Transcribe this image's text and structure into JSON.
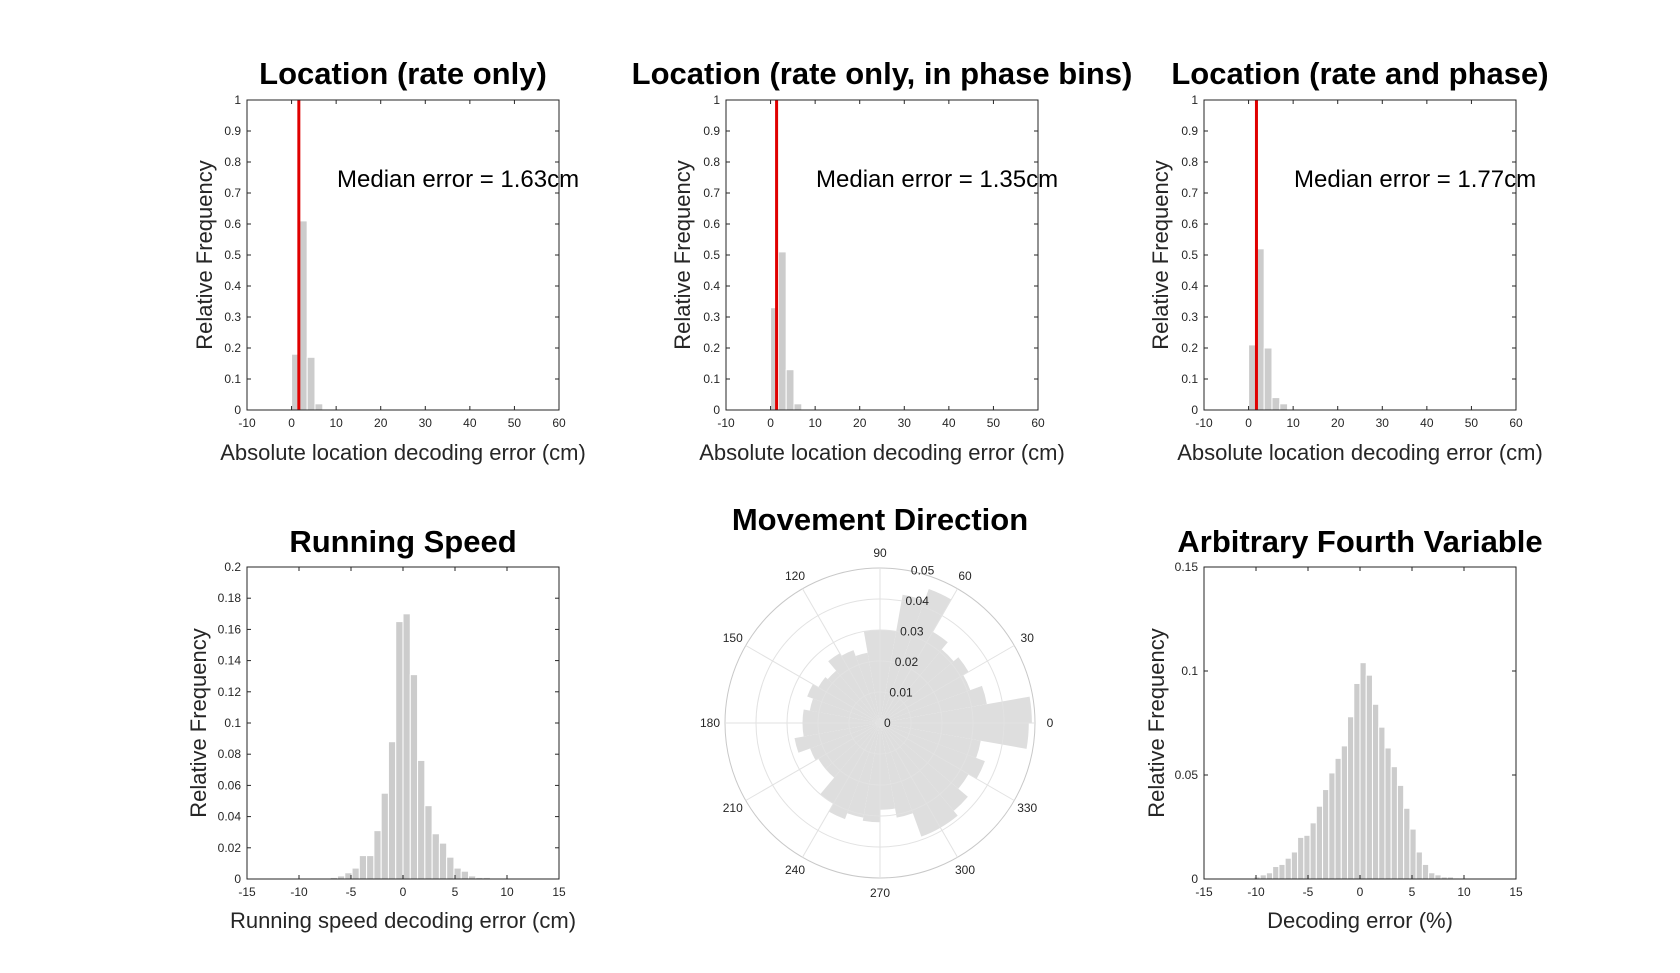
{
  "chart_data": [
    {
      "type": "bar",
      "title": "Location (rate only)",
      "xlabel": "Absolute location decoding error (cm)",
      "ylabel": "Relative Frequency",
      "xlim": [
        -10,
        60
      ],
      "ylim": [
        0,
        1
      ],
      "xticks": [
        "-10",
        "0",
        "10",
        "20",
        "30",
        "40",
        "50",
        "60"
      ],
      "yticks": [
        "0",
        "0.1",
        "0.2",
        "0.3",
        "0.4",
        "0.5",
        "0.6",
        "0.7",
        "0.8",
        "0.9",
        "1"
      ],
      "bin_width": 1.75,
      "bins": [
        0,
        1.75,
        3.5,
        5.25
      ],
      "values": [
        0.18,
        0.61,
        0.17,
        0.02
      ],
      "median": 1.63,
      "annotation": "Median error = 1.63cm",
      "bar_color": "#cccccc",
      "median_color": "#e00000"
    },
    {
      "type": "bar",
      "title": "Location (rate only, in phase bins)",
      "xlabel": "Absolute location decoding error (cm)",
      "ylabel": "Relative Frequency",
      "xlim": [
        -10,
        60
      ],
      "ylim": [
        0,
        1
      ],
      "xticks": [
        "-10",
        "0",
        "10",
        "20",
        "30",
        "40",
        "50",
        "60"
      ],
      "yticks": [
        "0",
        "0.1",
        "0.2",
        "0.3",
        "0.4",
        "0.5",
        "0.6",
        "0.7",
        "0.8",
        "0.9",
        "1"
      ],
      "bin_width": 1.75,
      "bins": [
        0,
        1.75,
        3.5,
        5.25
      ],
      "values": [
        0.33,
        0.51,
        0.13,
        0.02
      ],
      "median": 1.35,
      "annotation": "Median error = 1.35cm",
      "bar_color": "#cccccc",
      "median_color": "#e00000"
    },
    {
      "type": "bar",
      "title": "Location (rate and phase)",
      "xlabel": "Absolute location decoding error (cm)",
      "ylabel": "Relative Frequency",
      "xlim": [
        -10,
        60
      ],
      "ylim": [
        0,
        1
      ],
      "xticks": [
        "-10",
        "0",
        "10",
        "20",
        "30",
        "40",
        "50",
        "60"
      ],
      "yticks": [
        "0",
        "0.1",
        "0.2",
        "0.3",
        "0.4",
        "0.5",
        "0.6",
        "0.7",
        "0.8",
        "0.9",
        "1"
      ],
      "bin_width": 1.75,
      "bins": [
        0,
        1.75,
        3.5,
        5.25,
        7.0
      ],
      "values": [
        0.21,
        0.52,
        0.2,
        0.04,
        0.02
      ],
      "median": 1.77,
      "annotation": "Median error = 1.77cm",
      "bar_color": "#cccccc",
      "median_color": "#e00000"
    },
    {
      "type": "bar",
      "title": "Running Speed",
      "xlabel": "Running speed decoding error (cm)",
      "ylabel": "Relative Frequency",
      "xlim": [
        -15,
        15
      ],
      "ylim": [
        0,
        0.2
      ],
      "xticks": [
        "-15",
        "-10",
        "-5",
        "0",
        "5",
        "10",
        "15"
      ],
      "yticks": [
        "0",
        "0.02",
        "0.04",
        "0.06",
        "0.08",
        "0.1",
        "0.12",
        "0.14",
        "0.16",
        "0.18",
        "0.2"
      ],
      "bin_width": 0.7,
      "bins": [
        -7.0,
        -6.3,
        -5.6,
        -4.9,
        -4.2,
        -3.5,
        -2.8,
        -2.1,
        -1.4,
        -0.7,
        0.0,
        0.7,
        1.4,
        2.1,
        2.8,
        3.5,
        4.2,
        4.9,
        5.6,
        6.3,
        7.0,
        7.7
      ],
      "values": [
        0.001,
        0.002,
        0.004,
        0.007,
        0.015,
        0.015,
        0.031,
        0.055,
        0.088,
        0.165,
        0.17,
        0.131,
        0.076,
        0.047,
        0.029,
        0.023,
        0.014,
        0.007,
        0.005,
        0.002,
        0.001,
        0.001
      ],
      "bar_color": "#cccccc"
    },
    {
      "type": "polar_histogram",
      "title": "Movement Direction",
      "theta_ticks": [
        "0",
        "30",
        "60",
        "90",
        "120",
        "150",
        "180",
        "210",
        "240",
        "270",
        "300",
        "330"
      ],
      "r_ticks": [
        "0",
        "0.01",
        "0.02",
        "0.03",
        "0.04",
        "0.05"
      ],
      "rlim": [
        0,
        0.05
      ],
      "bin_width_deg": 10,
      "bins_start_deg": [
        0,
        10,
        20,
        30,
        40,
        50,
        60,
        70,
        80,
        90,
        100,
        110,
        120,
        130,
        140,
        150,
        160,
        170,
        180,
        190,
        200,
        210,
        220,
        230,
        240,
        250,
        260,
        270,
        280,
        290,
        300,
        310,
        320,
        330,
        340,
        350
      ],
      "values": [
        0.049,
        0.035,
        0.031,
        0.033,
        0.031,
        0.034,
        0.046,
        0.042,
        0.03,
        0.03,
        0.023,
        0.025,
        0.026,
        0.022,
        0.023,
        0.025,
        0.023,
        0.025,
        0.025,
        0.028,
        0.024,
        0.023,
        0.023,
        0.03,
        0.033,
        0.031,
        0.032,
        0.028,
        0.031,
        0.039,
        0.039,
        0.037,
        0.033,
        0.036,
        0.033,
        0.048
      ],
      "bar_color": "#dedede"
    },
    {
      "type": "bar",
      "title": "Arbitrary Fourth Variable",
      "xlabel": "Decoding error (%)",
      "ylabel": "Relative Frequency",
      "xlim": [
        -15,
        15
      ],
      "ylim": [
        0,
        0.15
      ],
      "xticks": [
        "-15",
        "-10",
        "-5",
        "0",
        "5",
        "10",
        "15"
      ],
      "yticks": [
        "0",
        "0.05",
        "0.1",
        "0.15"
      ],
      "bin_width": 0.6,
      "bins": [
        -10.2,
        -9.6,
        -9.0,
        -8.4,
        -7.8,
        -7.2,
        -6.6,
        -6.0,
        -5.4,
        -4.8,
        -4.2,
        -3.6,
        -3.0,
        -2.4,
        -1.8,
        -1.2,
        -0.6,
        0.0,
        0.6,
        1.2,
        1.8,
        2.4,
        3.0,
        3.6,
        4.2,
        4.8,
        5.4,
        6.0,
        6.6,
        7.2,
        7.8,
        8.4,
        9.0,
        9.6
      ],
      "values": [
        0.001,
        0.002,
        0.003,
        0.006,
        0.007,
        0.01,
        0.013,
        0.02,
        0.021,
        0.027,
        0.035,
        0.043,
        0.051,
        0.058,
        0.064,
        0.078,
        0.094,
        0.104,
        0.098,
        0.084,
        0.073,
        0.063,
        0.054,
        0.045,
        0.034,
        0.024,
        0.013,
        0.007,
        0.003,
        0.002,
        0.001,
        0.001,
        0.0005,
        0.0003
      ],
      "bar_color": "#cccccc"
    }
  ]
}
